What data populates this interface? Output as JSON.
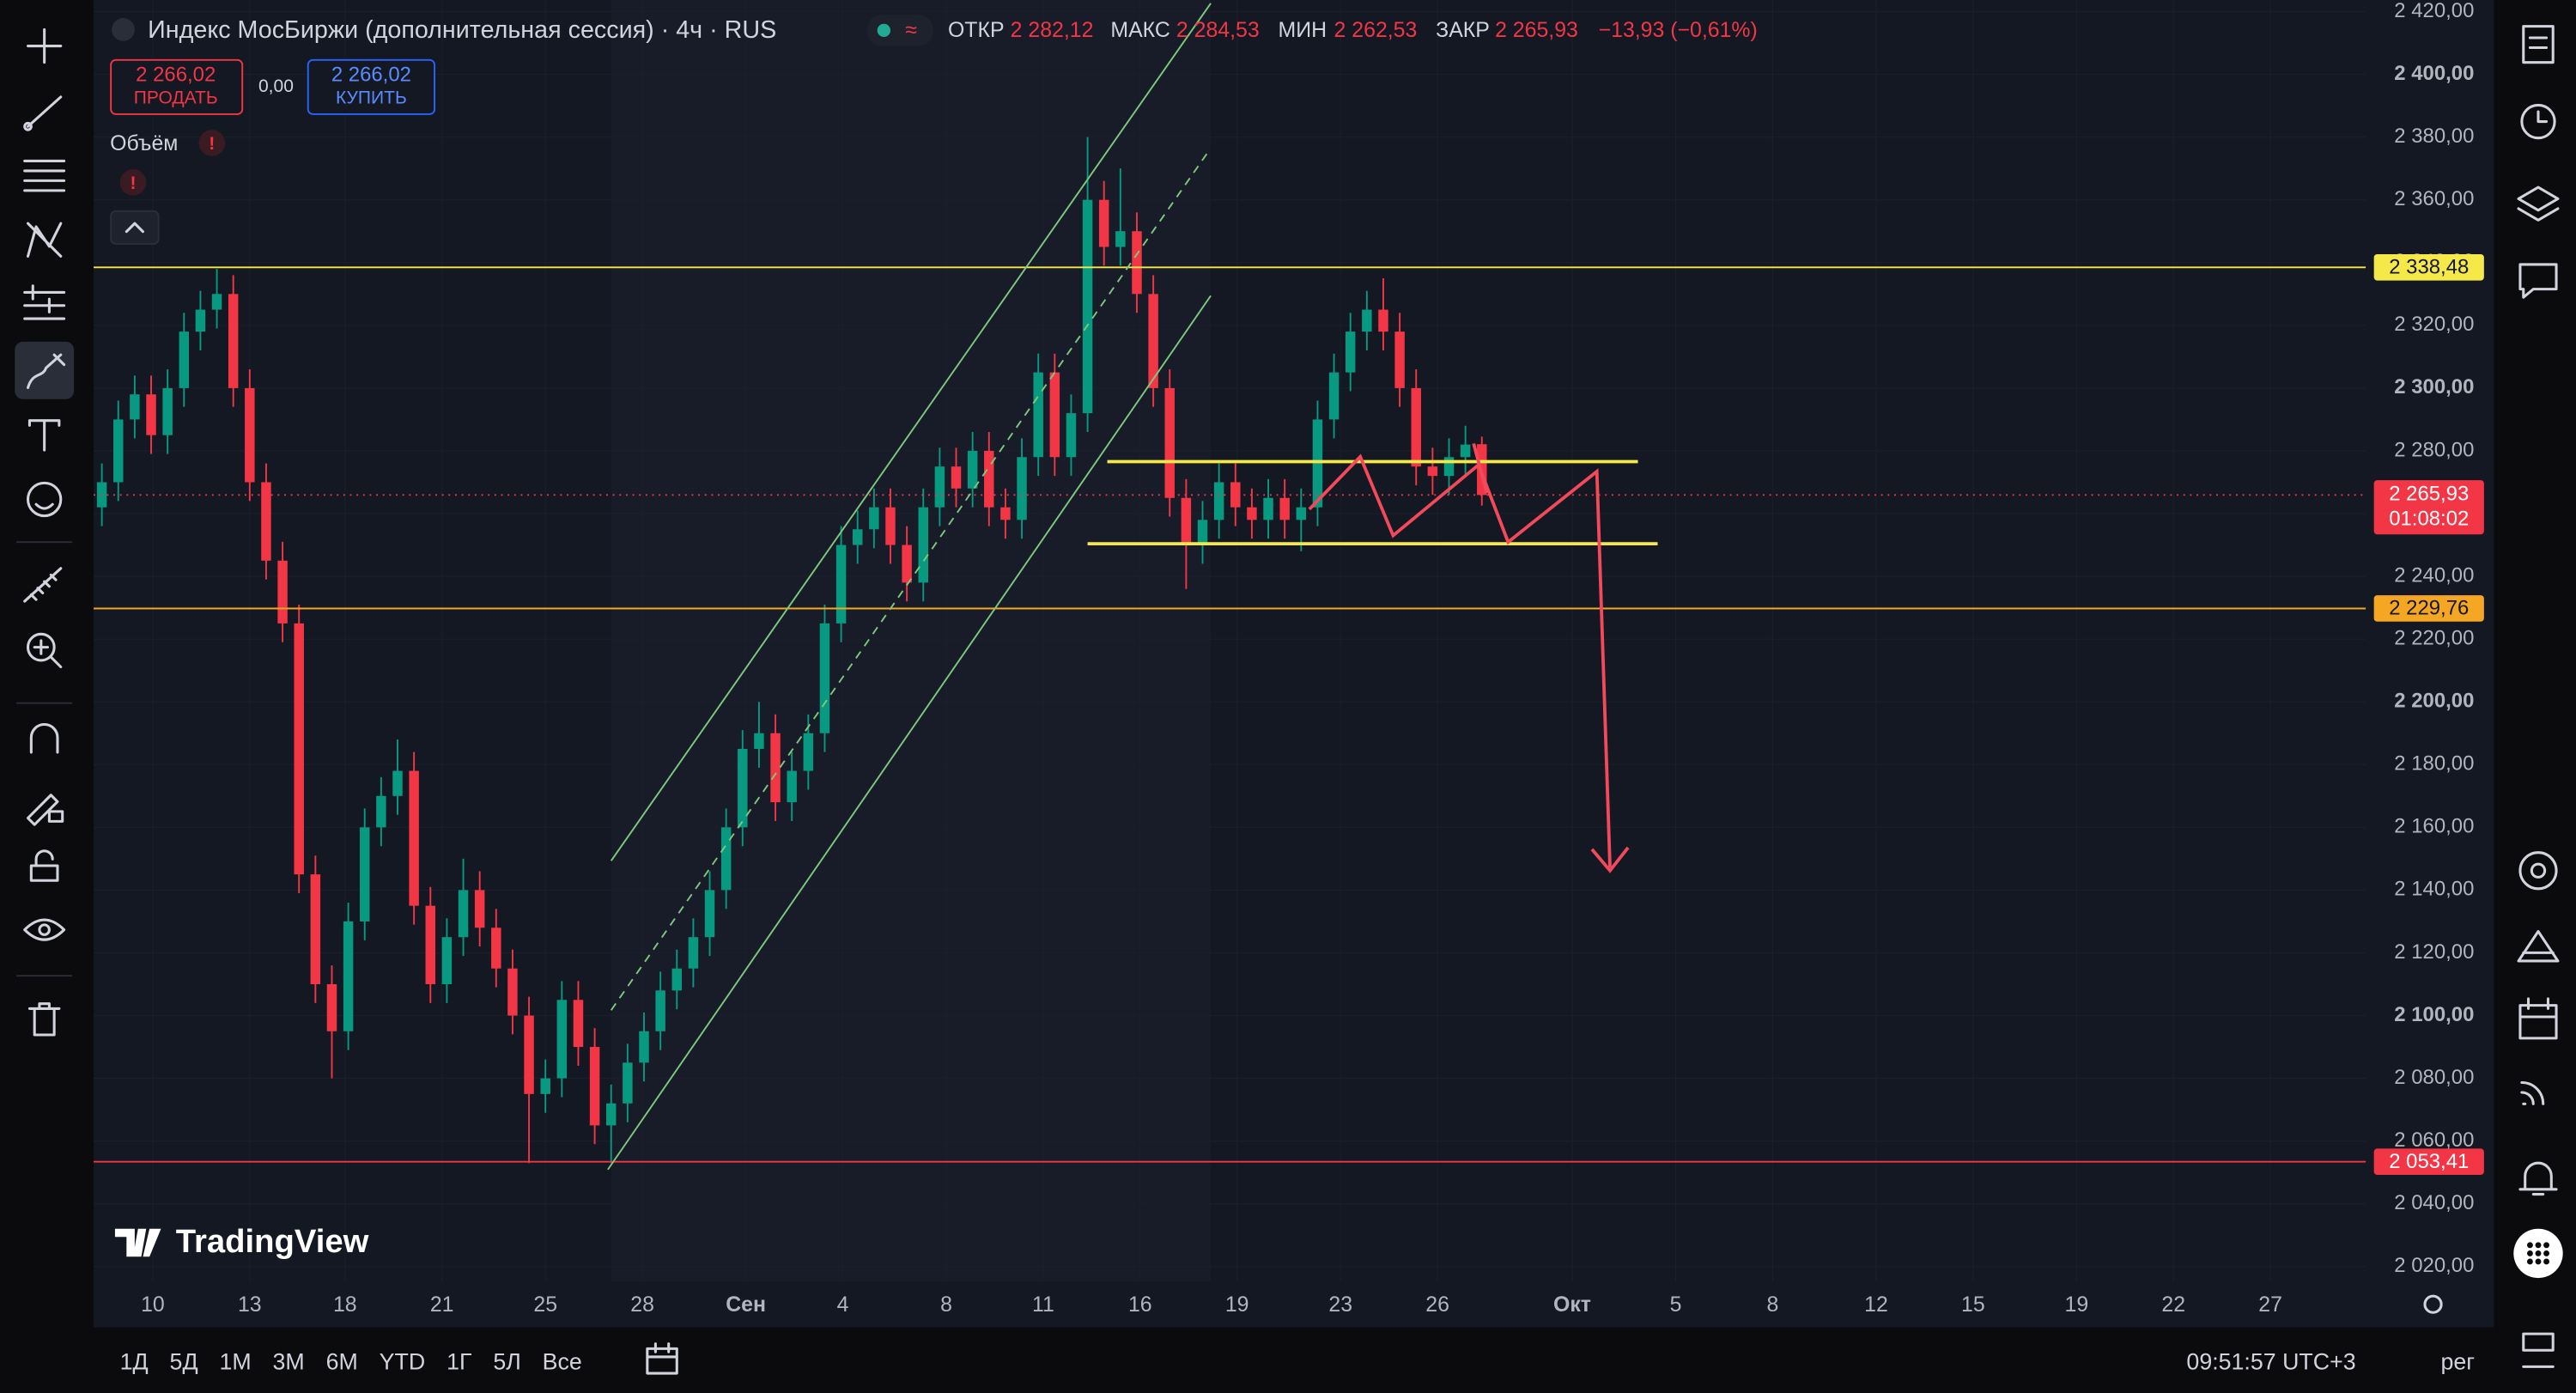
{
  "header": {
    "title": "Индекс МосБиржи (дополнительная сессия) · 4ч · RUS",
    "ohlc": [
      {
        "label": "ОТКР",
        "value": "2 282,12"
      },
      {
        "label": "МАКС",
        "value": "2 284,53"
      },
      {
        "label": "МИН",
        "value": "2 262,53"
      },
      {
        "label": "ЗАКР",
        "value": "2 265,93"
      }
    ],
    "change": "−13,93 (−0,61%)"
  },
  "trade": {
    "sell_price": "2 266,02",
    "sell_label": "ПРОДАТЬ",
    "spread": "0,00",
    "buy_price": "2 266,02",
    "buy_label": "КУПИТЬ"
  },
  "indicator": "Объём",
  "logo": "TradingView",
  "chart": {
    "type": "candlestick",
    "up_color": "#089981",
    "down_color": "#f23645",
    "xlim": [
      -0.5,
      137.8
    ],
    "ylim": [
      2015.3,
      2423.7
    ],
    "yticks": [
      {
        "value": 2020,
        "label": "2 020,00"
      },
      {
        "value": 2040,
        "label": "2 040,00"
      },
      {
        "value": 2060,
        "label": "2 060,00"
      },
      {
        "value": 2080,
        "label": "2 080,00"
      },
      {
        "value": 2100,
        "label": "2 100,00"
      },
      {
        "value": 2120,
        "label": "2 120,00"
      },
      {
        "value": 2140,
        "label": "2 140,00"
      },
      {
        "value": 2160,
        "label": "2 160,00"
      },
      {
        "value": 2180,
        "label": "2 180,00"
      },
      {
        "value": 2200,
        "label": "2 200,00"
      },
      {
        "value": 2220,
        "label": "2 220,00"
      },
      {
        "value": 2240,
        "label": "2 240,00"
      },
      {
        "value": 2260,
        "label": "2 260,00"
      },
      {
        "value": 2280,
        "label": "2 280,00"
      },
      {
        "value": 2300,
        "label": "2 300,00"
      },
      {
        "value": 2320,
        "label": "2 320,00"
      },
      {
        "value": 2340,
        "label": "2 340,00"
      },
      {
        "value": 2360,
        "label": "2 360,00"
      },
      {
        "value": 2380,
        "label": "2 380,00"
      },
      {
        "value": 2400,
        "label": "2 400,00"
      },
      {
        "value": 2420,
        "label": "2 420,00"
      }
    ],
    "xticks": [
      {
        "value": 3.1,
        "label": "10"
      },
      {
        "value": 9,
        "label": "13"
      },
      {
        "value": 14.8,
        "label": "18"
      },
      {
        "value": 20.7,
        "label": "21"
      },
      {
        "value": 27,
        "label": "25"
      },
      {
        "value": 32.9,
        "label": "28"
      },
      {
        "value": 39.2,
        "label": "Сен"
      },
      {
        "value": 45.1,
        "label": "4"
      },
      {
        "value": 51.4,
        "label": "8"
      },
      {
        "value": 57.3,
        "label": "11"
      },
      {
        "value": 63.2,
        "label": "16"
      },
      {
        "value": 69.1,
        "label": "19"
      },
      {
        "value": 75.4,
        "label": "23"
      },
      {
        "value": 81.3,
        "label": "26"
      },
      {
        "value": 89.5,
        "label": "Окт"
      },
      {
        "value": 95.8,
        "label": "5"
      },
      {
        "value": 101.7,
        "label": "8"
      },
      {
        "value": 108,
        "label": "12"
      },
      {
        "value": 113.9,
        "label": "15"
      },
      {
        "value": 120.2,
        "label": "19"
      },
      {
        "value": 126.1,
        "label": "22"
      },
      {
        "value": 132,
        "label": "27"
      }
    ],
    "levels": [
      {
        "value": 2338.48,
        "label": "2 338,48",
        "color": "#f5e94a"
      },
      {
        "value": 2229.76,
        "label": "2 229,76",
        "color": "#f5a623"
      },
      {
        "value": 2053.41,
        "label": "2 053,41",
        "color": "#f23645"
      }
    ],
    "current": {
      "value": 2265.93,
      "label": "2 265,93",
      "countdown": "01:08:02",
      "color": "#f23645"
    },
    "candles": [
      [
        2262,
        2276,
        2256,
        2270
      ],
      [
        2270,
        2296,
        2264,
        2290
      ],
      [
        2290,
        2304,
        2284,
        2298
      ],
      [
        2298,
        2304,
        2279,
        2285
      ],
      [
        2285,
        2306,
        2279,
        2300
      ],
      [
        2300,
        2324,
        2294,
        2318
      ],
      [
        2318,
        2331,
        2312,
        2325
      ],
      [
        2325,
        2338,
        2319,
        2330
      ],
      [
        2330,
        2336,
        2294,
        2300
      ],
      [
        2300,
        2306,
        2264,
        2270
      ],
      [
        2270,
        2276,
        2239,
        2245
      ],
      [
        2245,
        2251,
        2219,
        2225
      ],
      [
        2225,
        2231,
        2139,
        2145
      ],
      [
        2145,
        2151,
        2104,
        2110
      ],
      [
        2110,
        2116,
        2080,
        2095
      ],
      [
        2095,
        2136,
        2089,
        2130
      ],
      [
        2130,
        2166,
        2124,
        2160
      ],
      [
        2160,
        2176,
        2154,
        2170
      ],
      [
        2170,
        2188,
        2164,
        2178
      ],
      [
        2178,
        2184,
        2129,
        2135
      ],
      [
        2135,
        2141,
        2104,
        2110
      ],
      [
        2110,
        2131,
        2104,
        2125
      ],
      [
        2125,
        2150,
        2119,
        2140
      ],
      [
        2140,
        2146,
        2122,
        2128
      ],
      [
        2128,
        2134,
        2109,
        2115
      ],
      [
        2115,
        2121,
        2094,
        2100
      ],
      [
        2100,
        2106,
        2053,
        2075
      ],
      [
        2075,
        2086,
        2069,
        2080
      ],
      [
        2080,
        2111,
        2074,
        2105
      ],
      [
        2105,
        2111,
        2084,
        2090
      ],
      [
        2090,
        2096,
        2059,
        2065
      ],
      [
        2065,
        2078,
        2053,
        2072
      ],
      [
        2072,
        2091,
        2066,
        2085
      ],
      [
        2085,
        2101,
        2079,
        2095
      ],
      [
        2095,
        2114,
        2089,
        2108
      ],
      [
        2108,
        2121,
        2102,
        2115
      ],
      [
        2115,
        2131,
        2109,
        2125
      ],
      [
        2125,
        2146,
        2119,
        2140
      ],
      [
        2140,
        2166,
        2134,
        2160
      ],
      [
        2160,
        2191,
        2154,
        2185
      ],
      [
        2185,
        2200,
        2179,
        2190
      ],
      [
        2190,
        2196,
        2162,
        2168
      ],
      [
        2168,
        2184,
        2162,
        2178
      ],
      [
        2178,
        2196,
        2172,
        2190
      ],
      [
        2190,
        2231,
        2184,
        2225
      ],
      [
        2225,
        2256,
        2219,
        2250
      ],
      [
        2250,
        2261,
        2244,
        2255
      ],
      [
        2255,
        2268,
        2249,
        2262
      ],
      [
        2262,
        2268,
        2244,
        2250
      ],
      [
        2250,
        2256,
        2232,
        2238
      ],
      [
        2238,
        2268,
        2232,
        2262
      ],
      [
        2262,
        2281,
        2256,
        2275
      ],
      [
        2275,
        2281,
        2262,
        2268
      ],
      [
        2268,
        2286,
        2262,
        2280
      ],
      [
        2280,
        2286,
        2256,
        2262
      ],
      [
        2262,
        2268,
        2252,
        2258
      ],
      [
        2258,
        2284,
        2252,
        2278
      ],
      [
        2278,
        2311,
        2272,
        2305
      ],
      [
        2305,
        2311,
        2272,
        2278
      ],
      [
        2278,
        2298,
        2272,
        2292
      ],
      [
        2292,
        2380,
        2286,
        2360
      ],
      [
        2360,
        2366,
        2339,
        2345
      ],
      [
        2345,
        2370,
        2339,
        2350
      ],
      [
        2350,
        2356,
        2324,
        2330
      ],
      [
        2330,
        2336,
        2294,
        2300
      ],
      [
        2300,
        2306,
        2259,
        2265
      ],
      [
        2265,
        2271,
        2236,
        2250
      ],
      [
        2250,
        2264,
        2244,
        2258
      ],
      [
        2258,
        2276,
        2252,
        2270
      ],
      [
        2270,
        2276,
        2256,
        2262
      ],
      [
        2262,
        2268,
        2252,
        2258
      ],
      [
        2258,
        2271,
        2252,
        2265
      ],
      [
        2265,
        2271,
        2252,
        2258
      ],
      [
        2258,
        2268,
        2248,
        2262
      ],
      [
        2262,
        2296,
        2256,
        2290
      ],
      [
        2290,
        2311,
        2284,
        2305
      ],
      [
        2305,
        2324,
        2299,
        2318
      ],
      [
        2318,
        2331,
        2312,
        2325
      ],
      [
        2325,
        2335,
        2312,
        2318
      ],
      [
        2318,
        2324,
        2294,
        2300
      ],
      [
        2300,
        2306,
        2269,
        2275
      ],
      [
        2275,
        2281,
        2266,
        2272
      ],
      [
        2272,
        2284,
        2266,
        2278
      ],
      [
        2278,
        2288,
        2272,
        2282
      ],
      [
        2282.12,
        2284.53,
        2262.53,
        2265.93
      ]
    ]
  },
  "footer": {
    "ranges": [
      "1Д",
      "5Д",
      "1М",
      "3М",
      "6М",
      "YTD",
      "1Г",
      "5Л",
      "Все"
    ],
    "time": "09:51:57 UTC+3",
    "session": "рег"
  }
}
